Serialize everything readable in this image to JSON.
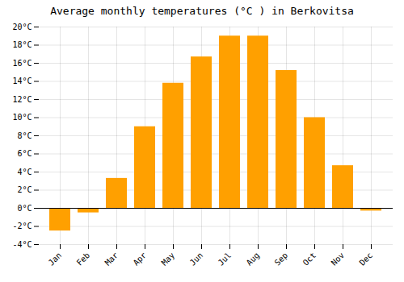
{
  "chart_data": {
    "type": "bar",
    "title": "Average monthly temperatures (°C ) in Berkovitsa",
    "categories": [
      "Jan",
      "Feb",
      "Mar",
      "Apr",
      "May",
      "Jun",
      "Jul",
      "Aug",
      "Sep",
      "Oct",
      "Nov",
      "Dec"
    ],
    "values": [
      -2.5,
      -0.5,
      3.3,
      9.0,
      13.8,
      16.7,
      19.0,
      19.0,
      15.2,
      10.0,
      4.7,
      -0.3
    ],
    "color": "#FFA000",
    "ylim": [
      -4,
      20
    ],
    "yticks": [
      {
        "value": -4,
        "label": "-4°C"
      },
      {
        "value": -2,
        "label": "-2°C"
      },
      {
        "value": 0,
        "label": "0°C"
      },
      {
        "value": 2,
        "label": "2°C"
      },
      {
        "value": 4,
        "label": "4°C"
      },
      {
        "value": 6,
        "label": "6°C"
      },
      {
        "value": 8,
        "label": "8°C"
      },
      {
        "value": 10,
        "label": "10°C"
      },
      {
        "value": 12,
        "label": "12°C"
      },
      {
        "value": 14,
        "label": "14°C"
      },
      {
        "value": 16,
        "label": "16°C"
      },
      {
        "value": 18,
        "label": "18°C"
      },
      {
        "value": 20,
        "label": "20°C"
      }
    ],
    "grid": true
  }
}
